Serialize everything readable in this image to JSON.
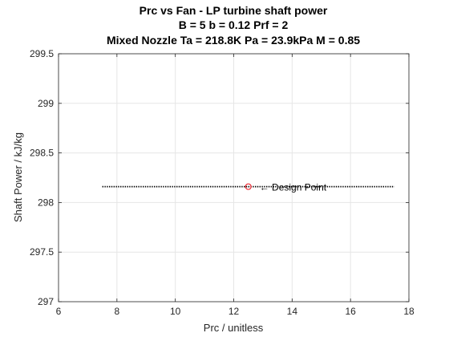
{
  "chart_data": {
    "type": "line",
    "title_lines": [
      "Prc vs Fan - LP turbine shaft power",
      "B = 5 b = 0.12 Prf = 2",
      "Mixed Nozzle Ta = 218.8K Pa = 23.9kPa M = 0.85"
    ],
    "xlabel": "Prc / unitless",
    "ylabel": "Shaft Power / kJ/kg",
    "xlim": [
      6,
      18
    ],
    "ylim": [
      297,
      299.5
    ],
    "xticks": [
      6,
      8,
      10,
      12,
      14,
      16,
      18
    ],
    "yticks": [
      297,
      297.5,
      298,
      298.5,
      299,
      299.5
    ],
    "grid": true,
    "series": [
      {
        "style": "dotted",
        "color": "#000000",
        "x_start": 7.5,
        "x_end": 17.5,
        "y": 298.16
      }
    ],
    "design_point": {
      "x": 12.5,
      "y": 298.16,
      "marker": "circle",
      "color": "#e8141e",
      "label": "← Design Point"
    }
  }
}
